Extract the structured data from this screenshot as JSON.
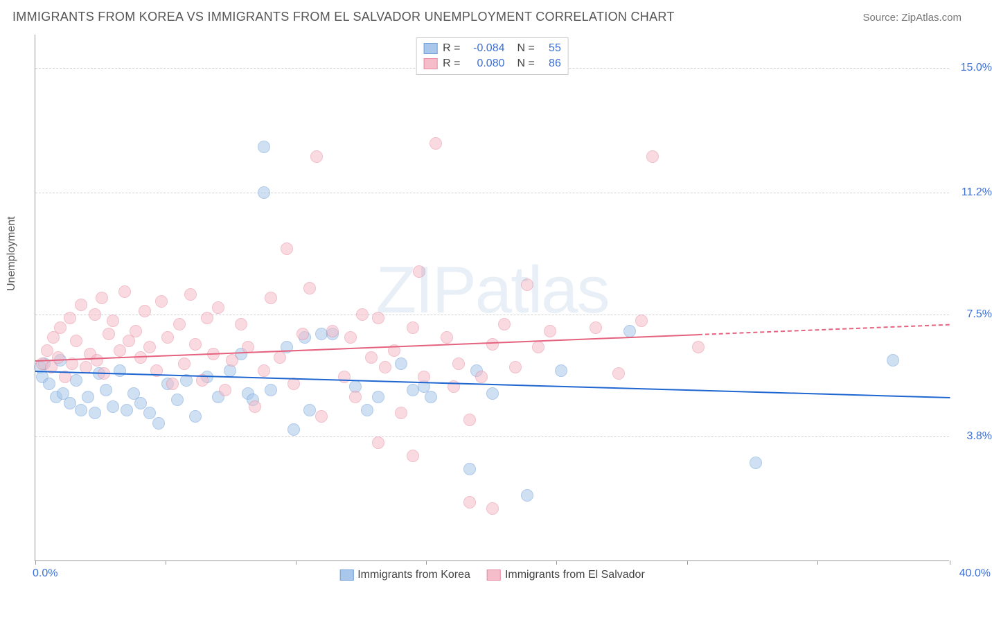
{
  "title": "IMMIGRANTS FROM KOREA VS IMMIGRANTS FROM EL SALVADOR UNEMPLOYMENT CORRELATION CHART",
  "source": "Source: ZipAtlas.com",
  "ylabel": "Unemployment",
  "watermark": "ZIPatlas",
  "chart": {
    "type": "scatter",
    "xlim": [
      0,
      40
    ],
    "ylim": [
      0,
      16
    ],
    "xtick_labels": [
      "0.0%",
      "40.0%"
    ],
    "ytick_positions": [
      3.8,
      7.5,
      11.2,
      15.0
    ],
    "ytick_labels": [
      "3.8%",
      "7.5%",
      "11.2%",
      "15.0%"
    ],
    "xtick_marks": [
      0,
      5.7,
      11.4,
      17.1,
      22.8,
      28.5,
      34.2,
      40
    ],
    "grid_color": "#d0d0d0",
    "background_color": "#ffffff",
    "axis_color": "#999999",
    "tick_font_color": "#3b6fd6",
    "marker_radius": 9,
    "marker_opacity": 0.55,
    "series": [
      {
        "name": "Immigrants from Korea",
        "fill": "#a8c7ea",
        "stroke": "#6f9fd8",
        "trend_color": "#1f66d0",
        "trend": {
          "x1": 0,
          "y1": 5.8,
          "x2": 40,
          "y2": 5.0,
          "solid_until_x": 40
        },
        "R": "-0.084",
        "N": "55",
        "points": [
          [
            0.2,
            5.9
          ],
          [
            0.3,
            5.6
          ],
          [
            0.4,
            6.0
          ],
          [
            0.6,
            5.4
          ],
          [
            0.9,
            5.0
          ],
          [
            1.1,
            6.1
          ],
          [
            1.2,
            5.1
          ],
          [
            1.5,
            4.8
          ],
          [
            1.8,
            5.5
          ],
          [
            2.0,
            4.6
          ],
          [
            2.3,
            5.0
          ],
          [
            2.6,
            4.5
          ],
          [
            2.8,
            5.7
          ],
          [
            3.1,
            5.2
          ],
          [
            3.4,
            4.7
          ],
          [
            3.7,
            5.8
          ],
          [
            4.0,
            4.6
          ],
          [
            4.3,
            5.1
          ],
          [
            4.6,
            4.8
          ],
          [
            5.0,
            4.5
          ],
          [
            5.4,
            4.2
          ],
          [
            5.8,
            5.4
          ],
          [
            6.2,
            4.9
          ],
          [
            6.6,
            5.5
          ],
          [
            7.0,
            4.4
          ],
          [
            7.5,
            5.6
          ],
          [
            8.0,
            5.0
          ],
          [
            8.5,
            5.8
          ],
          [
            9.0,
            6.3
          ],
          [
            9.3,
            5.1
          ],
          [
            9.5,
            4.9
          ],
          [
            10.0,
            11.2
          ],
          [
            10.0,
            12.6
          ],
          [
            10.3,
            5.2
          ],
          [
            11.0,
            6.5
          ],
          [
            11.3,
            4.0
          ],
          [
            11.8,
            6.8
          ],
          [
            12.0,
            4.6
          ],
          [
            12.5,
            6.9
          ],
          [
            13.0,
            6.9
          ],
          [
            14.0,
            5.3
          ],
          [
            14.5,
            4.6
          ],
          [
            15.0,
            5.0
          ],
          [
            16.0,
            6.0
          ],
          [
            16.5,
            5.2
          ],
          [
            17.0,
            5.3
          ],
          [
            17.3,
            5.0
          ],
          [
            19.0,
            2.8
          ],
          [
            19.3,
            5.8
          ],
          [
            20.0,
            5.1
          ],
          [
            21.5,
            2.0
          ],
          [
            23.0,
            5.8
          ],
          [
            26.0,
            7.0
          ],
          [
            31.5,
            3.0
          ],
          [
            37.5,
            6.1
          ]
        ]
      },
      {
        "name": "Immigrants from El Salvador",
        "fill": "#f5bdc9",
        "stroke": "#e88ba0",
        "trend_color": "#e5627f",
        "trend": {
          "x1": 0,
          "y1": 6.1,
          "x2": 40,
          "y2": 7.2,
          "solid_until_x": 29
        },
        "R": "0.080",
        "N": "86",
        "points": [
          [
            0.3,
            6.0
          ],
          [
            0.5,
            6.4
          ],
          [
            0.7,
            5.9
          ],
          [
            0.8,
            6.8
          ],
          [
            1.0,
            6.2
          ],
          [
            1.1,
            7.1
          ],
          [
            1.3,
            5.6
          ],
          [
            1.5,
            7.4
          ],
          [
            1.6,
            6.0
          ],
          [
            1.8,
            6.7
          ],
          [
            2.0,
            7.8
          ],
          [
            2.2,
            5.9
          ],
          [
            2.4,
            6.3
          ],
          [
            2.6,
            7.5
          ],
          [
            2.7,
            6.1
          ],
          [
            2.9,
            8.0
          ],
          [
            3.0,
            5.7
          ],
          [
            3.2,
            6.9
          ],
          [
            3.4,
            7.3
          ],
          [
            3.7,
            6.4
          ],
          [
            3.9,
            8.2
          ],
          [
            4.1,
            6.7
          ],
          [
            4.4,
            7.0
          ],
          [
            4.6,
            6.2
          ],
          [
            4.8,
            7.6
          ],
          [
            5.0,
            6.5
          ],
          [
            5.3,
            5.8
          ],
          [
            5.5,
            7.9
          ],
          [
            5.8,
            6.8
          ],
          [
            6.0,
            5.4
          ],
          [
            6.3,
            7.2
          ],
          [
            6.5,
            6.0
          ],
          [
            6.8,
            8.1
          ],
          [
            7.0,
            6.6
          ],
          [
            7.3,
            5.5
          ],
          [
            7.5,
            7.4
          ],
          [
            7.8,
            6.3
          ],
          [
            8.0,
            7.7
          ],
          [
            8.3,
            5.2
          ],
          [
            8.6,
            6.1
          ],
          [
            9.0,
            7.2
          ],
          [
            9.3,
            6.5
          ],
          [
            9.6,
            4.7
          ],
          [
            10.0,
            5.8
          ],
          [
            10.3,
            8.0
          ],
          [
            10.7,
            6.2
          ],
          [
            11.0,
            9.5
          ],
          [
            11.3,
            5.4
          ],
          [
            11.7,
            6.9
          ],
          [
            12.0,
            8.3
          ],
          [
            12.3,
            12.3
          ],
          [
            12.5,
            4.4
          ],
          [
            13.0,
            7.0
          ],
          [
            13.5,
            5.6
          ],
          [
            13.8,
            6.8
          ],
          [
            14.0,
            5.0
          ],
          [
            14.3,
            7.5
          ],
          [
            14.7,
            6.2
          ],
          [
            15.0,
            3.6
          ],
          [
            15.0,
            7.4
          ],
          [
            15.3,
            5.9
          ],
          [
            15.7,
            6.4
          ],
          [
            16.0,
            4.5
          ],
          [
            16.5,
            7.1
          ],
          [
            16.5,
            3.2
          ],
          [
            16.8,
            8.8
          ],
          [
            17.0,
            5.6
          ],
          [
            17.5,
            12.7
          ],
          [
            18.0,
            6.8
          ],
          [
            18.3,
            5.3
          ],
          [
            18.5,
            6.0
          ],
          [
            19.0,
            4.3
          ],
          [
            19.0,
            1.8
          ],
          [
            19.5,
            5.6
          ],
          [
            20.0,
            6.6
          ],
          [
            20.0,
            1.6
          ],
          [
            20.5,
            7.2
          ],
          [
            21.0,
            5.9
          ],
          [
            21.5,
            8.4
          ],
          [
            22.0,
            6.5
          ],
          [
            22.5,
            7.0
          ],
          [
            24.5,
            7.1
          ],
          [
            25.5,
            5.7
          ],
          [
            26.5,
            7.3
          ],
          [
            27.0,
            12.3
          ],
          [
            29.0,
            6.5
          ]
        ]
      }
    ]
  },
  "legend_top": {
    "rows": [
      {
        "swatch_fill": "#a8c7ea",
        "swatch_stroke": "#6f9fd8",
        "r_label": "R =",
        "r_val": "-0.084",
        "n_label": "N =",
        "n_val": "55"
      },
      {
        "swatch_fill": "#f5bdc9",
        "swatch_stroke": "#e88ba0",
        "r_label": "R =",
        "r_val": "0.080",
        "n_label": "N =",
        "n_val": "86"
      }
    ]
  },
  "legend_bottom": [
    {
      "swatch_fill": "#a8c7ea",
      "swatch_stroke": "#6f9fd8",
      "label": "Immigrants from Korea"
    },
    {
      "swatch_fill": "#f5bdc9",
      "swatch_stroke": "#e88ba0",
      "label": "Immigrants from El Salvador"
    }
  ]
}
